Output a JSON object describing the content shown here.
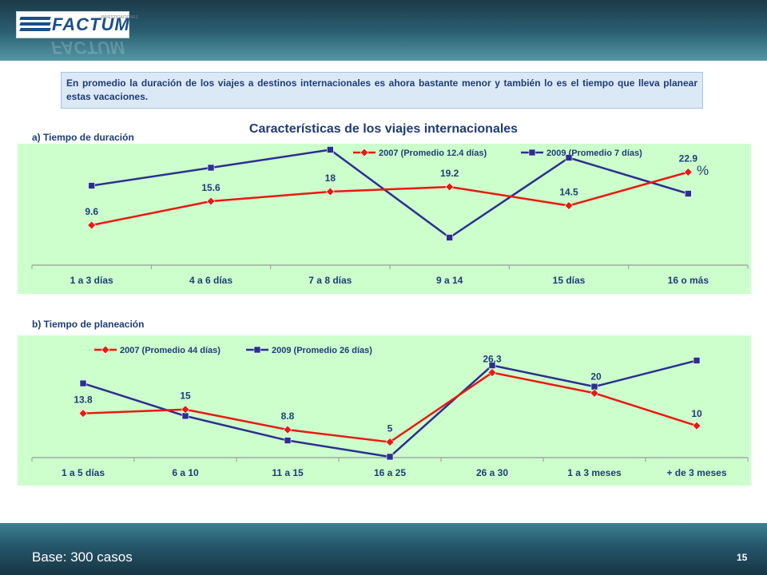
{
  "header": {
    "logo_text": "FACTUM",
    "logo_tag": "INVESTIGACIONES"
  },
  "summary_text": "En promedio la duración de los viajes a destinos internacionales es ahora bastante menor  y también lo es  el tiempo que lleva planear estas vacaciones.",
  "section_a_label": "a) Tiempo de duración",
  "section_b_label": "b) Tiempo de planeación",
  "main_title": "Características de los viajes internacionales",
  "unit_label": "%",
  "colors": {
    "red": "#e8190f",
    "blue": "#2b2f8f",
    "plot_bg": "#ccffcc",
    "text": "#1f3c78"
  },
  "chart_data": [
    {
      "type": "line",
      "title": "Características de los viajes internacionales",
      "subtitle": "a) Tiempo de duración",
      "categories": [
        "1 a 3 días",
        "4 a 6 días",
        "7 a 8 días",
        "9 a 14",
        "15 días",
        "16 o más"
      ],
      "series": [
        {
          "name": "2007 (Promedio 12.4 días)",
          "color": "#e8190f",
          "marker": "diamond",
          "values": [
            9.6,
            15.6,
            18,
            19.2,
            14.5,
            22.9
          ],
          "labels": [
            "9.6",
            "15.6",
            "18",
            "19.2",
            "14.5",
            "22.9"
          ]
        },
        {
          "name": "2009 (Promedio 7 días)",
          "color": "#2b2f8f",
          "marker": "square",
          "values": [
            19.5,
            24,
            28.5,
            6.5,
            26.5,
            17.5
          ],
          "labels": []
        }
      ],
      "ylim": [
        0,
        30
      ],
      "grid": false,
      "legend": "top-right"
    },
    {
      "type": "line",
      "subtitle": "b) Tiempo de planeación",
      "categories": [
        "1 a 5 días",
        "6 a 10",
        "11 a 15",
        "16 a 25",
        "26 a 30",
        "1 a 3 meses",
        "+ de 3 meses"
      ],
      "series": [
        {
          "name": "2007 (Promedio 44 días)",
          "color": "#e8190f",
          "marker": "diamond",
          "values": [
            13.8,
            15,
            8.8,
            5,
            26.3,
            20,
            10
          ],
          "labels": [
            "13.8",
            "15",
            "8.8",
            "5",
            "26.3",
            "20",
            "10"
          ]
        },
        {
          "name": "2009 (Promedio 26 días)",
          "color": "#2b2f8f",
          "marker": "square",
          "values": [
            23,
            13,
            5.5,
            0.5,
            28.5,
            22,
            30
          ],
          "labels": []
        }
      ],
      "ylim": [
        0,
        35
      ],
      "grid": false,
      "legend": "top-left"
    }
  ],
  "footer": {
    "base_text": "Base: 300 casos",
    "page_number": "15"
  }
}
